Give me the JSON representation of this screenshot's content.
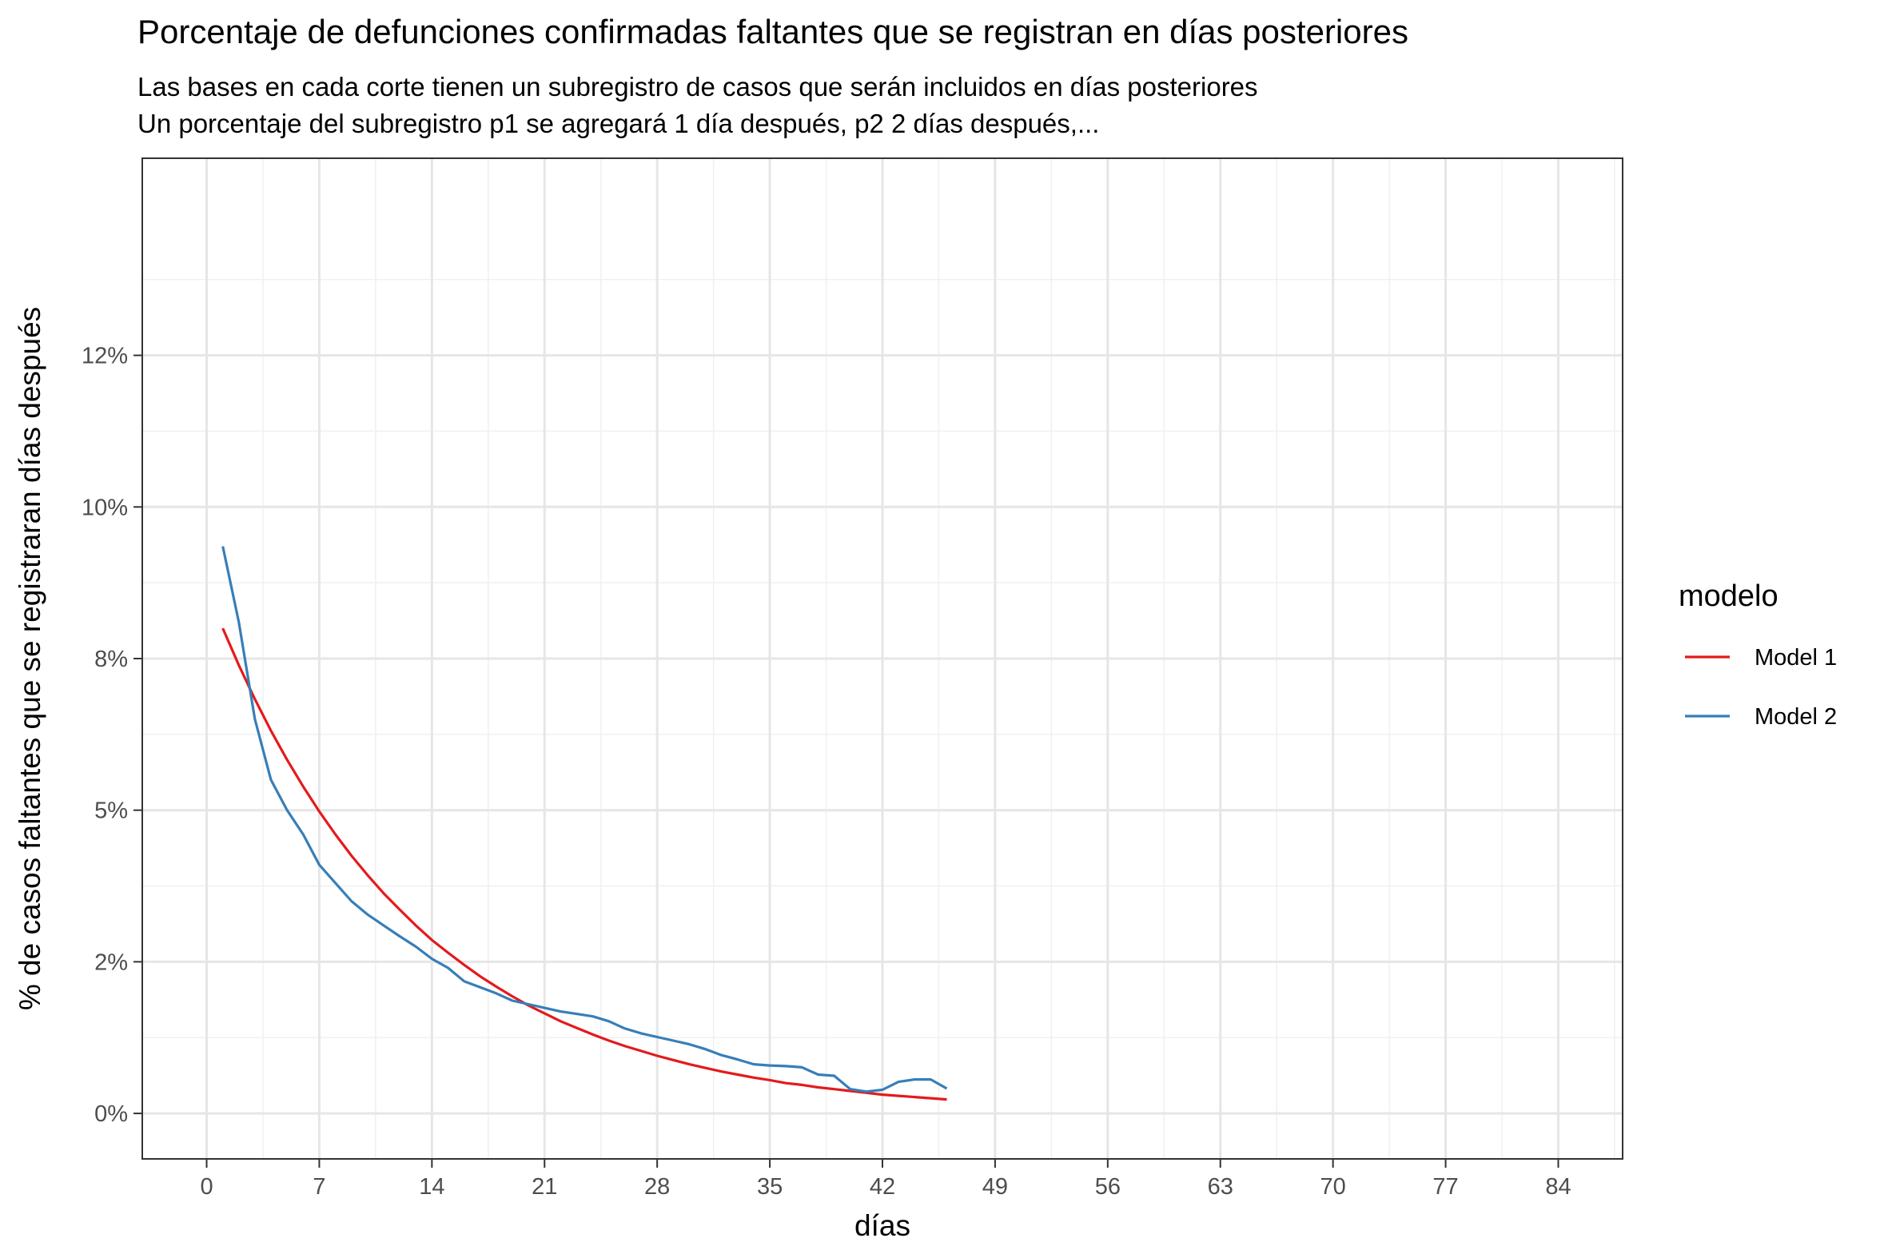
{
  "chart_data": {
    "type": "line",
    "title": "Porcentaje de defunciones confirmadas faltantes que se registran en días posteriores",
    "subtitle": [
      "Las bases en cada corte tienen un subregistro de casos que serán incluidos en días posteriores",
      "Un porcentaje del subregistro p1 se agregará 1 día después, p2 2 días después,..."
    ],
    "xlabel": "días",
    "ylabel": "% de casos faltantes que se registraran días después",
    "xlim": [
      -4,
      88
    ],
    "ylim": [
      -0.0075,
      0.1575
    ],
    "x_ticks": [
      0,
      7,
      14,
      21,
      28,
      35,
      42,
      49,
      56,
      63,
      70,
      77,
      84
    ],
    "x_tick_labels": [
      "0",
      "7",
      "14",
      "21",
      "28",
      "35",
      "42",
      "49",
      "56",
      "63",
      "70",
      "77",
      "84"
    ],
    "y_ticks": [
      0,
      0.025,
      0.05,
      0.075,
      0.1,
      0.125
    ],
    "y_tick_labels": [
      "0%",
      "2%",
      "5%",
      "8%",
      "10%",
      "12%"
    ],
    "grid": true,
    "legend": {
      "title": "modelo",
      "position": "right"
    },
    "series": [
      {
        "name": "Model 1",
        "color": "#e41a1c",
        "x": [
          1,
          2,
          3,
          4,
          5,
          6,
          7,
          8,
          9,
          10,
          11,
          12,
          13,
          14,
          15,
          16,
          17,
          18,
          19,
          20,
          21,
          22,
          23,
          24,
          25,
          26,
          27,
          28,
          29,
          30,
          31,
          32,
          33,
          34,
          35,
          36,
          37,
          38,
          39,
          40,
          41,
          42,
          43,
          44,
          45,
          46
        ],
        "y": [
          0.08,
          0.0739,
          0.0683,
          0.0631,
          0.0583,
          0.0539,
          0.0498,
          0.046,
          0.0425,
          0.0393,
          0.0363,
          0.0336,
          0.031,
          0.0286,
          0.0265,
          0.0245,
          0.0226,
          0.0209,
          0.0193,
          0.0178,
          0.0165,
          0.0152,
          0.0141,
          0.013,
          0.012,
          0.0111,
          0.0103,
          0.0095,
          0.0088,
          0.0081,
          0.0075,
          0.0069,
          0.0064,
          0.0059,
          0.0055,
          0.005,
          0.0047,
          0.0043,
          0.004,
          0.0037,
          0.0034,
          0.0031,
          0.0029,
          0.0027,
          0.0025,
          0.0023
        ]
      },
      {
        "name": "Model 2",
        "color": "#377eb8",
        "x": [
          1,
          2,
          3,
          4,
          5,
          6,
          7,
          8,
          9,
          10,
          11,
          12,
          13,
          14,
          15,
          16,
          17,
          18,
          19,
          20,
          21,
          22,
          23,
          24,
          25,
          26,
          27,
          28,
          29,
          30,
          31,
          32,
          33,
          34,
          35,
          36,
          37,
          38,
          39,
          40,
          41,
          42,
          43,
          44,
          45,
          46
        ],
        "y": [
          0.0935,
          0.081,
          0.065,
          0.055,
          0.05,
          0.046,
          0.041,
          0.038,
          0.035,
          0.0328,
          0.031,
          0.0292,
          0.0275,
          0.0255,
          0.024,
          0.0218,
          0.0208,
          0.0198,
          0.0186,
          0.018,
          0.0174,
          0.0168,
          0.0164,
          0.016,
          0.0152,
          0.014,
          0.0132,
          0.0126,
          0.012,
          0.0114,
          0.0106,
          0.0096,
          0.0089,
          0.0081,
          0.0079,
          0.0078,
          0.0076,
          0.0064,
          0.0062,
          0.004,
          0.0036,
          0.0039,
          0.0052,
          0.0056,
          0.0056,
          0.0041
        ]
      }
    ]
  }
}
